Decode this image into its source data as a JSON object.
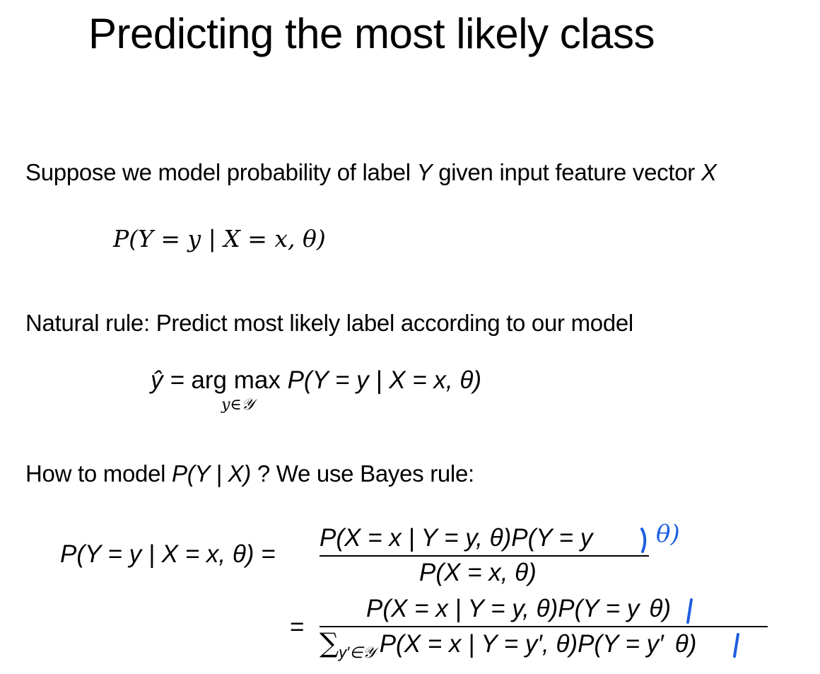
{
  "slide": {
    "title": "Predicting the most likely class",
    "para1": {
      "prefix": "Suppose we model probability of label ",
      "var_y": "Y",
      "middle": " given input feature vector ",
      "var_x": "X"
    },
    "eq1": "P(Y = y | X = x, θ)",
    "para2": "Natural rule: Predict most likely label according to our model",
    "eq2": {
      "lhs": "ŷ = ",
      "op": "arg max",
      "rhs": "P(Y = y | X = x, θ)",
      "sub": "y∈𝒴"
    },
    "para3": {
      "prefix": "How to model ",
      "expr": "P(Y | X)",
      "suffix": " ? We use Bayes rule:"
    },
    "eq3": {
      "lhs": "P(Y = y | X = x, θ) =",
      "num1": "P(X = x | Y = y, θ)P(Y = y",
      "den1": "P(X = x, θ)",
      "eq2_sign": "=",
      "num2": "P(X = x | Y = y, θ)P(Y = y",
      "num2_end": "θ)",
      "den2_sum": "∑",
      "den2_sub": "y′∈𝒴",
      "den2": "P(X = x | Y = y′, θ)P(Y = y′",
      "den2_end": "θ)"
    },
    "annotation": {
      "handwritten_text": "θ)",
      "ink_color": "#1f5fe0"
    }
  }
}
